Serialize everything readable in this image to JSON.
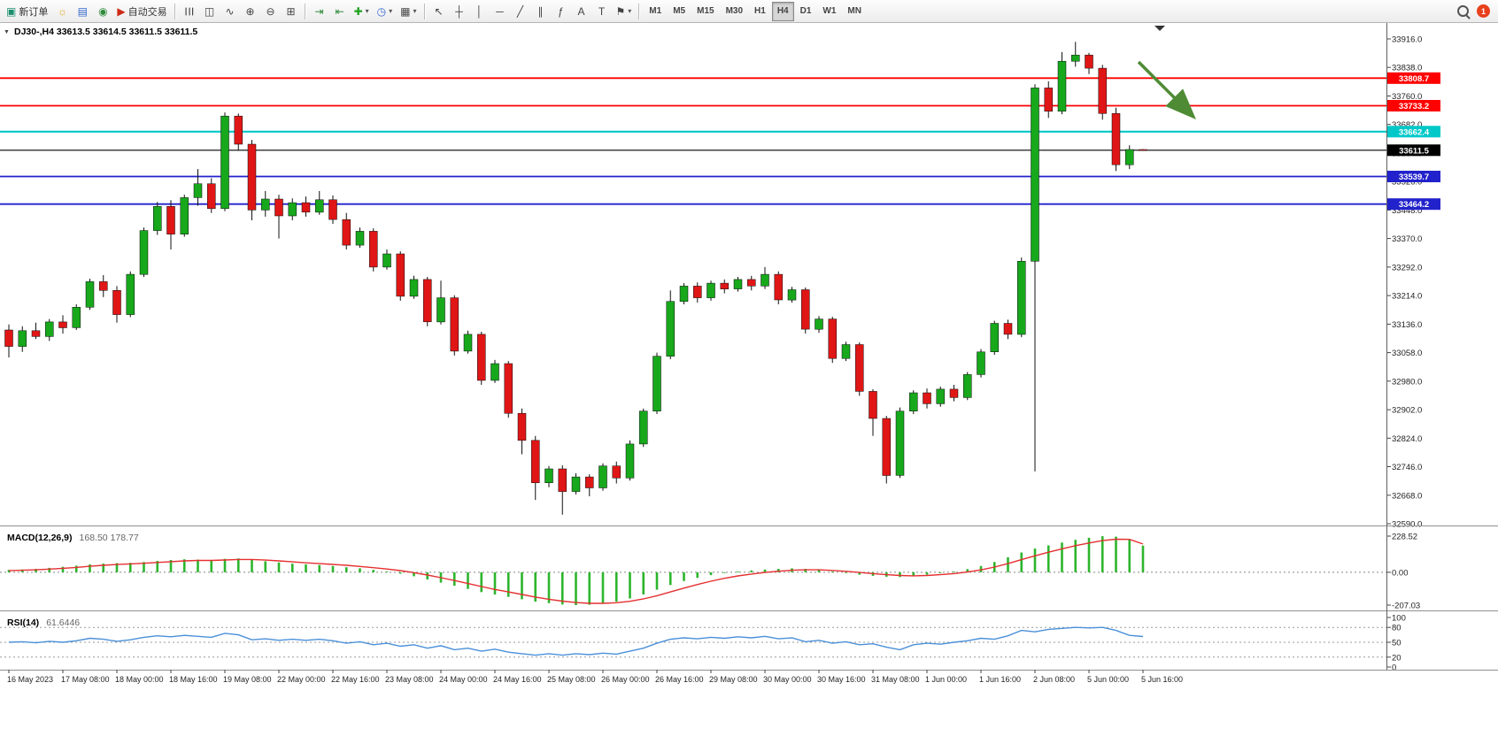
{
  "toolbar": {
    "new_order": "新订单",
    "auto_trading": "自动交易",
    "timeframes": [
      "M1",
      "M5",
      "M15",
      "M30",
      "H1",
      "H4",
      "D1",
      "W1",
      "MN"
    ],
    "active_timeframe": "H4",
    "notification_badge": "1",
    "icons": {
      "new_order": "▣",
      "mql": "☼",
      "profiles": "▤",
      "terminal": "◉",
      "autotrading": "▶",
      "bars_chart": "☰",
      "candles_chart": "◫",
      "line_chart": "∿",
      "zoom_in": "⊕",
      "zoom_out": "⊖",
      "tile_windows": "⊞",
      "autoscroll": "⇥",
      "chart_shift": "⇤",
      "indicators": "✚",
      "periods": "◷",
      "templates": "▦",
      "caret": "▾",
      "cursor": "↖",
      "crosshair": "┼",
      "vline": "│",
      "hline": "─",
      "trendline": "╱",
      "channel": "∥",
      "fibo": "ƒ",
      "text": "A",
      "label": "T",
      "objects": "⚑"
    }
  },
  "symbol_header": {
    "collapse_icon": "▼",
    "symbol": "DJ30-",
    "period": "H4",
    "open": "33613.5",
    "high": "33614.5",
    "low": "33611.5",
    "close": "33611.5",
    "text": "DJ30-,H4 33613.5 33614.5 33611.5 33611.5"
  },
  "chart_data": {
    "type": "candlestick",
    "symbol": "DJ30-",
    "timeframe": "H4",
    "price_axis": {
      "max": 33916.0,
      "min": 32590.0,
      "step": 78.0,
      "labels": [
        "33916.0",
        "33838.0",
        "33760.0",
        "33682.0",
        "33604.0",
        "33526.0",
        "33448.0",
        "33370.0",
        "33292.0",
        "33214.0",
        "33136.0",
        "33058.0",
        "32980.0",
        "32902.0",
        "32824.0",
        "32746.0",
        "32668.0",
        "32590.0"
      ]
    },
    "bid": 33611.5,
    "hlines": [
      {
        "price": 33808.7,
        "label": "33808.7",
        "color": "#FF0000",
        "width": 1.8
      },
      {
        "price": 33733.2,
        "label": "33733.2",
        "color": "#FF0000",
        "width": 1.8
      },
      {
        "price": 33662.4,
        "label": "33662.4",
        "color": "#00C8C8",
        "width": 2.2
      },
      {
        "price": 33611.5,
        "label": "33611.5",
        "color": "#000000",
        "width": 1.2
      },
      {
        "price": 33539.7,
        "label": "33539.7",
        "color": "#2222CC",
        "width": 1.8
      },
      {
        "price": 33464.2,
        "label": "33464.2",
        "color": "#2222CC",
        "width": 1.8
      }
    ],
    "annotations": [
      {
        "type": "arrow",
        "direction": "down-right",
        "color": "#4F8B35"
      }
    ],
    "candles": [
      [
        33120,
        33135,
        33045,
        33075
      ],
      [
        33075,
        33130,
        33060,
        33118
      ],
      [
        33118,
        33140,
        33095,
        33102
      ],
      [
        33102,
        33150,
        33090,
        33142
      ],
      [
        33142,
        33160,
        33110,
        33126
      ],
      [
        33126,
        33190,
        33120,
        33182
      ],
      [
        33182,
        33260,
        33175,
        33252
      ],
      [
        33252,
        33270,
        33210,
        33228
      ],
      [
        33228,
        33240,
        33140,
        33162
      ],
      [
        33162,
        33280,
        33155,
        33272
      ],
      [
        33272,
        33400,
        33265,
        33392
      ],
      [
        33392,
        33470,
        33380,
        33458
      ],
      [
        33458,
        33475,
        33340,
        33382
      ],
      [
        33382,
        33490,
        33375,
        33482
      ],
      [
        33482,
        33560,
        33460,
        33520
      ],
      [
        33520,
        33535,
        33440,
        33452
      ],
      [
        33452,
        33715,
        33445,
        33705
      ],
      [
        33705,
        33712,
        33610,
        33628
      ],
      [
        33628,
        33640,
        33420,
        33448
      ],
      [
        33448,
        33500,
        33430,
        33478
      ],
      [
        33478,
        33490,
        33370,
        33432
      ],
      [
        33432,
        33480,
        33420,
        33468
      ],
      [
        33468,
        33485,
        33430,
        33442
      ],
      [
        33442,
        33500,
        33435,
        33476
      ],
      [
        33476,
        33488,
        33410,
        33422
      ],
      [
        33422,
        33440,
        33340,
        33352
      ],
      [
        33352,
        33400,
        33345,
        33390
      ],
      [
        33390,
        33398,
        33280,
        33292
      ],
      [
        33292,
        33340,
        33285,
        33328
      ],
      [
        33328,
        33335,
        33200,
        33212
      ],
      [
        33212,
        33268,
        33205,
        33258
      ],
      [
        33258,
        33265,
        33130,
        33142
      ],
      [
        33142,
        33255,
        33135,
        33208
      ],
      [
        33208,
        33215,
        33050,
        33062
      ],
      [
        33062,
        33118,
        33055,
        33108
      ],
      [
        33108,
        33115,
        32970,
        32982
      ],
      [
        32982,
        33038,
        32975,
        33028
      ],
      [
        33028,
        33035,
        32880,
        32892
      ],
      [
        32892,
        32905,
        32780,
        32818
      ],
      [
        32818,
        32830,
        32655,
        32702
      ],
      [
        32702,
        32748,
        32690,
        32740
      ],
      [
        32740,
        32750,
        32615,
        32678
      ],
      [
        32678,
        32728,
        32670,
        32718
      ],
      [
        32718,
        32725,
        32665,
        32688
      ],
      [
        32688,
        32755,
        32680,
        32748
      ],
      [
        32748,
        32760,
        32700,
        32715
      ],
      [
        32715,
        32818,
        32708,
        32808
      ],
      [
        32808,
        32905,
        32800,
        32898
      ],
      [
        32898,
        33058,
        32890,
        33048
      ],
      [
        33048,
        33228,
        33040,
        33198
      ],
      [
        33198,
        33248,
        33190,
        33240
      ],
      [
        33240,
        33250,
        33195,
        33208
      ],
      [
        33208,
        33255,
        33200,
        33248
      ],
      [
        33248,
        33258,
        33220,
        33232
      ],
      [
        33232,
        33265,
        33225,
        33258
      ],
      [
        33258,
        33268,
        33228,
        33240
      ],
      [
        33240,
        33292,
        33232,
        33272
      ],
      [
        33272,
        33280,
        33190,
        33202
      ],
      [
        33202,
        33238,
        33195,
        33230
      ],
      [
        33230,
        33236,
        33110,
        33122
      ],
      [
        33122,
        33158,
        33112,
        33150
      ],
      [
        33150,
        33156,
        33030,
        33042
      ],
      [
        33042,
        33088,
        33035,
        33080
      ],
      [
        33080,
        33086,
        32940,
        32952
      ],
      [
        32952,
        32958,
        32830,
        32878
      ],
      [
        32878,
        32885,
        32700,
        32722
      ],
      [
        32722,
        32908,
        32715,
        32898
      ],
      [
        32898,
        32955,
        32890,
        32948
      ],
      [
        32948,
        32960,
        32905,
        32918
      ],
      [
        32918,
        32965,
        32910,
        32958
      ],
      [
        32958,
        32970,
        32925,
        32935
      ],
      [
        32935,
        33005,
        32928,
        32998
      ],
      [
        32998,
        33068,
        32990,
        33060
      ],
      [
        33060,
        33145,
        33052,
        33138
      ],
      [
        33138,
        33148,
        33095,
        33108
      ],
      [
        33108,
        33318,
        33100,
        33308
      ],
      [
        33308,
        33792,
        32733,
        33782
      ],
      [
        33782,
        33800,
        33700,
        33718
      ],
      [
        33718,
        33880,
        33710,
        33855
      ],
      [
        33855,
        33908,
        33840,
        33872
      ],
      [
        33872,
        33878,
        33820,
        33836
      ],
      [
        33836,
        33845,
        33695,
        33712
      ],
      [
        33712,
        33728,
        33555,
        33572
      ],
      [
        33572,
        33625,
        33560,
        33613.5
      ],
      [
        33613.5,
        33614.5,
        33611.5,
        33611.5
      ]
    ],
    "time_labels": [
      "16 May 2023",
      "17 May 08:00",
      "18 May 00:00",
      "18 May 16:00",
      "19 May 08:00",
      "22 May 00:00",
      "22 May 16:00",
      "23 May 08:00",
      "24 May 00:00",
      "24 May 16:00",
      "25 May 08:00",
      "26 May 00:00",
      "26 May 16:00",
      "29 May 08:00",
      "30 May 00:00",
      "30 May 16:00",
      "31 May 08:00",
      "1 Jun 00:00",
      "1 Jun 16:00",
      "2 Jun 08:00",
      "5 Jun 00:00",
      "5 Jun 16:00"
    ],
    "time_label_bars": [
      0,
      4,
      8,
      12,
      16,
      20,
      24,
      28,
      32,
      36,
      40,
      44,
      48,
      52,
      56,
      60,
      64,
      68,
      72,
      76,
      80,
      84
    ],
    "indicators": [
      {
        "name": "MACD(12,26,9)",
        "values": "168.50 178.77",
        "axis_labels": [
          "228.52",
          "0.00",
          "-207.03"
        ],
        "max": 228.52,
        "min": -207.03,
        "histogram": [
          15,
          18,
          22,
          28,
          35,
          42,
          50,
          55,
          58,
          60,
          65,
          72,
          78,
          82,
          80,
          76,
          85,
          88,
          80,
          70,
          62,
          55,
          50,
          46,
          40,
          32,
          25,
          15,
          5,
          -8,
          -25,
          -45,
          -65,
          -85,
          -105,
          -125,
          -140,
          -155,
          -170,
          -185,
          -195,
          -203,
          -207,
          -205,
          -198,
          -185,
          -165,
          -140,
          -110,
          -80,
          -55,
          -35,
          -18,
          -5,
          5,
          12,
          18,
          22,
          25,
          22,
          15,
          5,
          -5,
          -15,
          -22,
          -28,
          -30,
          -25,
          -15,
          -5,
          5,
          20,
          40,
          65,
          95,
          125,
          150,
          170,
          188,
          205,
          218,
          228,
          225,
          205,
          168.5
        ],
        "signal": [
          10,
          13,
          16,
          20,
          25,
          31,
          38,
          44,
          49,
          53,
          57,
          62,
          67,
          72,
          75,
          75,
          78,
          81,
          81,
          77,
          72,
          66,
          60,
          55,
          50,
          44,
          37,
          29,
          21,
          11,
          -2,
          -17,
          -34,
          -52,
          -71,
          -90,
          -108,
          -124,
          -140,
          -156,
          -170,
          -182,
          -191,
          -196,
          -196,
          -192,
          -183,
          -168,
          -148,
          -124,
          -100,
          -77,
          -56,
          -38,
          -23,
          -11,
          -1,
          7,
          13,
          16,
          16,
          12,
          6,
          -1,
          -8,
          -15,
          -20,
          -22,
          -20,
          -15,
          -8,
          2,
          15,
          33,
          55,
          80,
          104,
          127,
          148,
          168,
          185,
          200,
          209,
          208,
          178.77
        ]
      },
      {
        "name": "RSI(14)",
        "values": "61.6446",
        "axis_labels": [
          "100",
          "80",
          "50",
          "20",
          "0"
        ],
        "levels": [
          80,
          50,
          20
        ],
        "max": 100,
        "min": 0,
        "values_line": [
          50,
          51,
          49,
          52,
          50,
          53,
          58,
          56,
          52,
          55,
          60,
          63,
          61,
          64,
          62,
          60,
          68,
          65,
          55,
          57,
          54,
          56,
          54,
          56,
          53,
          48,
          51,
          45,
          48,
          42,
          45,
          38,
          43,
          35,
          38,
          32,
          36,
          30,
          27,
          24,
          27,
          24,
          27,
          25,
          28,
          26,
          32,
          38,
          48,
          56,
          59,
          57,
          60,
          58,
          61,
          59,
          62,
          57,
          59,
          51,
          54,
          48,
          51,
          45,
          47,
          40,
          35,
          45,
          48,
          46,
          50,
          53,
          58,
          56,
          63,
          74,
          71,
          76,
          78,
          80,
          79,
          80,
          74,
          64,
          61.64
        ]
      }
    ]
  },
  "colors": {
    "candle_up": "#17A81C",
    "candle_down": "#E01616",
    "candle_wick": "#111111",
    "macd_histogram": "#2DB52D",
    "macd_signal": "#E53030",
    "rsi_line": "#4A90D9",
    "arrow": "#4F8B35",
    "bid_line": "#000000"
  }
}
